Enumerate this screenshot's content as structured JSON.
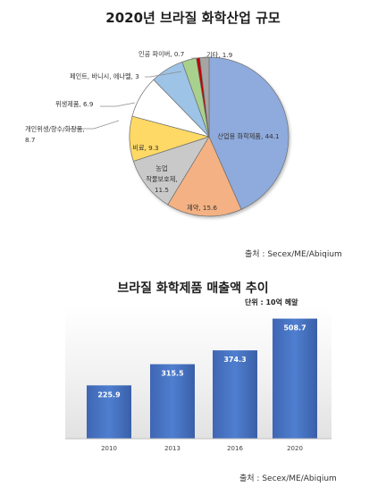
{
  "charts": {
    "pie": {
      "title": "2020년 브라질 화학산업 규모",
      "source": "출처 : Secex/ME/Abiqium"
    },
    "bar": {
      "title": "브라질 화학제품 매출액 추이",
      "unit": "단위 : 10억 헤알",
      "source": "출처 : Secex/ME/Abiqium"
    }
  },
  "chart_data": [
    {
      "type": "pie",
      "title": "2020년 브라질 화학산업 규모",
      "labels": [
        "산업용 화학제품",
        "제약",
        "농업 작물보호제",
        "비료",
        "개인위생/향수/화장품",
        "위생제품",
        "페인트, 바니시, 에나멜",
        "인공 파이버",
        "기타"
      ],
      "label_lines": [
        [
          "산업용 화학제품, 44.1"
        ],
        [
          "제약, 15.6"
        ],
        [
          "농업",
          "작물보호제,",
          "11.5"
        ],
        [
          "비료, 9.3"
        ],
        [
          "개인위생/향수/화장품,",
          "8.7"
        ],
        [
          "위생제품, 6.9"
        ],
        [
          "페인트, 바니시, 에나멜, 3"
        ],
        [
          "인공 파이버, 0.7"
        ],
        [
          "기타, 1.9"
        ]
      ],
      "values": [
        44.1,
        15.6,
        11.5,
        9.3,
        8.7,
        6.9,
        3,
        0.7,
        1.9
      ],
      "colors": [
        "#8faadc",
        "#f4b183",
        "#c9c9c9",
        "#ffd966",
        "#ffffff",
        "#9dc3e6",
        "#a9d18e",
        "#c00000",
        "#a5a5a5"
      ],
      "legend": "none"
    },
    {
      "type": "bar",
      "title": "브라질 화학제품 매출액 추이",
      "ylabel": "단위 : 10억 헤알",
      "categories": [
        "2010",
        "2013",
        "2016",
        "2020"
      ],
      "values": [
        225.9,
        315.5,
        374.3,
        508.7
      ],
      "value_labels": [
        "225.9",
        "315.5",
        "374.3",
        "508.7"
      ],
      "ylim": [
        0,
        560
      ],
      "grid": false,
      "legend": "none",
      "bar_color": "#4472c4"
    }
  ]
}
